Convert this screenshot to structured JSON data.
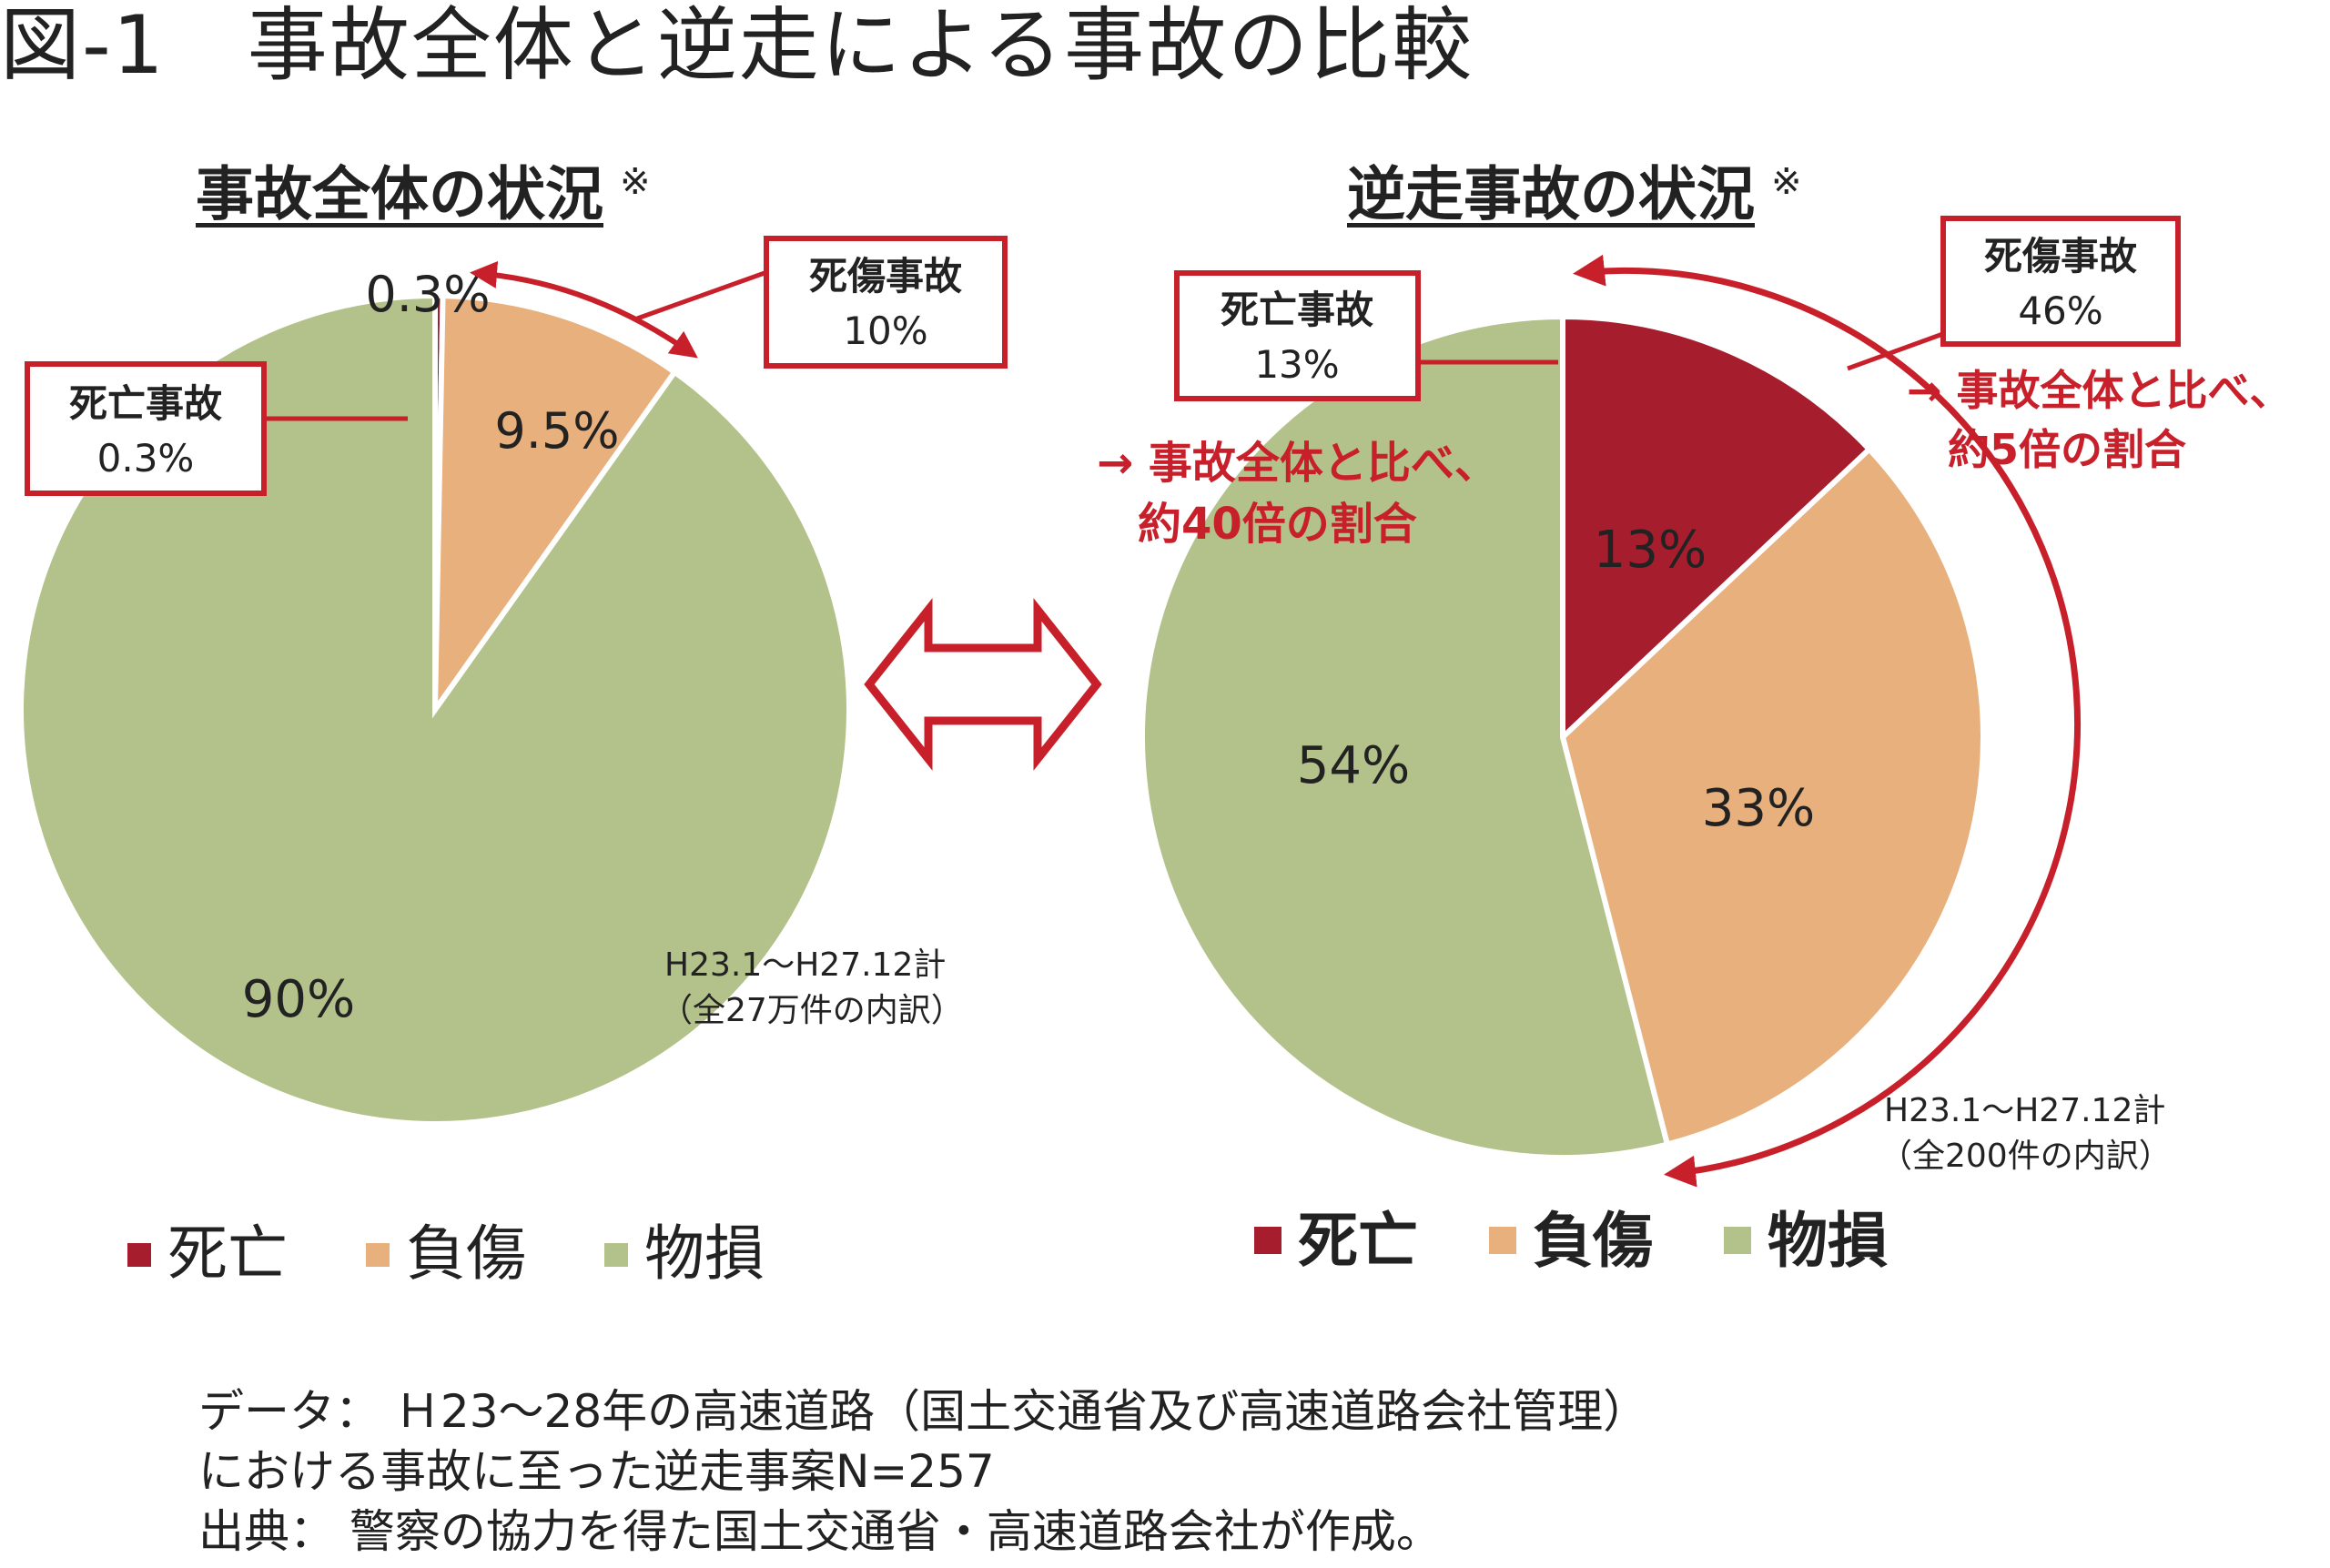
{
  "figure_title": "図-1　事故全体と逆走による事故の比較",
  "colors": {
    "death": "#a61e2d",
    "injury": "#e8b07d",
    "property": "#b3c18a",
    "accent": "#c8202b"
  },
  "chart_data": [
    {
      "type": "pie",
      "title": "事故全体の状況",
      "title_mark": "※",
      "categories": [
        "死亡",
        "負傷",
        "物損"
      ],
      "values": [
        0.3,
        9.5,
        90
      ],
      "slice_labels": [
        "0.3%",
        "9.5%",
        "90%"
      ],
      "legend": [
        "死亡",
        "負傷",
        "物損"
      ],
      "legend_position": "bottom",
      "period_note": [
        "H23.1～H27.12計",
        "（全27万件の内訳）"
      ],
      "callouts": [
        {
          "label": "死亡事故",
          "value": "0.3%"
        },
        {
          "label": "死傷事故",
          "value": "10%"
        }
      ]
    },
    {
      "type": "pie",
      "title": "逆走事故の状況",
      "title_mark": "※",
      "categories": [
        "死亡",
        "負傷",
        "物損"
      ],
      "values": [
        13,
        33,
        54
      ],
      "slice_labels": [
        "13%",
        "33%",
        "54%"
      ],
      "legend": [
        "死亡",
        "負傷",
        "物損"
      ],
      "legend_position": "bottom",
      "period_note": [
        "H23.1～H27.12計",
        "（全200件の内訳）"
      ],
      "callouts": [
        {
          "label": "死亡事故",
          "value": "13%"
        },
        {
          "label": "死傷事故",
          "value": "46%"
        }
      ],
      "annotations": [
        [
          "→ 事故全体と比べ、",
          "約40倍の割合"
        ],
        [
          "→ 事故全体と比べ、",
          "約5倍の割合"
        ]
      ]
    }
  ],
  "notes": [
    "データ： Ｈ23～28年の高速道路（国土交通省及び高速道路会社管理）",
    "における事故に至った逆走事案N=257",
    "出典： 警察の協力を得た国土交通省・高速道路会社が作成。"
  ]
}
